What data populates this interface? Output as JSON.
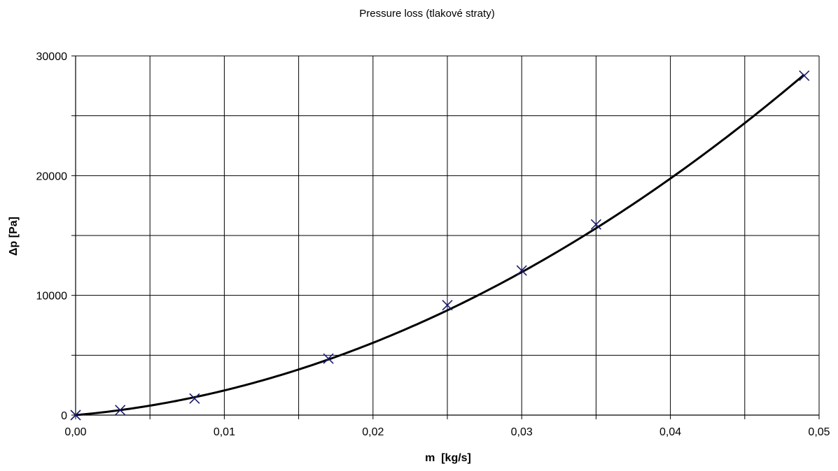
{
  "chart_data": {
    "type": "scatter",
    "title": "Pressure loss (tlakové straty)",
    "xlabel": "m  [kg/s]",
    "ylabel": "Δp [Pa]",
    "xlim": [
      0,
      0.05
    ],
    "ylim": [
      0,
      30000
    ],
    "x_ticks": [
      0,
      0.01,
      0.02,
      0.03,
      0.04,
      0.05
    ],
    "x_tick_labels": [
      "0,00",
      "0,01",
      "0,02",
      "0,03",
      "0,04",
      "0,05"
    ],
    "y_ticks": [
      0,
      10000,
      20000,
      30000
    ],
    "y_tick_labels": [
      "0",
      "10000",
      "20000",
      "30000"
    ],
    "grid": true,
    "legend": "none",
    "series": [
      {
        "marker": "x",
        "color": "#1a1a6e",
        "x": [
          0.0,
          0.003,
          0.008,
          0.017,
          0.025,
          0.03,
          0.035,
          0.049
        ],
        "y": [
          0,
          420,
          1380,
          4720,
          9180,
          12080,
          15920,
          28350
        ]
      }
    ],
    "trendline": {
      "type": "polynomial",
      "color": "#000000",
      "coefficients_c1_c2": [
        110000,
        9600000
      ]
    }
  }
}
